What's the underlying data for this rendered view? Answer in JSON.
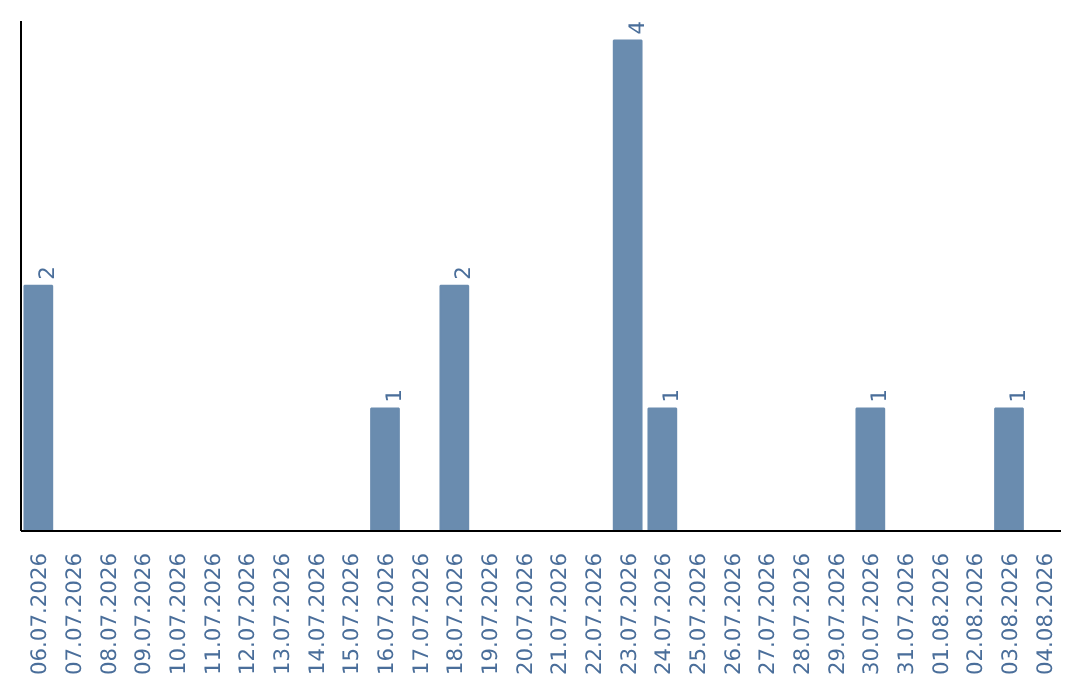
{
  "chart_data": {
    "type": "bar",
    "categories": [
      "06.07.2026",
      "07.07.2026",
      "08.07.2026",
      "09.07.2026",
      "10.07.2026",
      "11.07.2026",
      "12.07.2026",
      "13.07.2026",
      "14.07.2026",
      "15.07.2026",
      "16.07.2026",
      "17.07.2026",
      "18.07.2026",
      "19.07.2026",
      "20.07.2026",
      "21.07.2026",
      "22.07.2026",
      "23.07.2026",
      "24.07.2026",
      "25.07.2026",
      "26.07.2026",
      "27.07.2026",
      "28.07.2026",
      "29.07.2026",
      "30.07.2026",
      "31.07.2026",
      "01.08.2026",
      "02.08.2026",
      "03.08.2026",
      "04.08.2026"
    ],
    "values": [
      2,
      0,
      0,
      0,
      0,
      0,
      0,
      0,
      0,
      0,
      1,
      0,
      2,
      0,
      0,
      0,
      0,
      4,
      1,
      0,
      0,
      0,
      0,
      0,
      1,
      0,
      0,
      0,
      1,
      0
    ],
    "value_labels": [
      "2",
      null,
      null,
      null,
      null,
      null,
      null,
      null,
      null,
      null,
      "1",
      null,
      "2",
      null,
      null,
      null,
      null,
      "4",
      "1",
      null,
      null,
      null,
      null,
      null,
      "1",
      null,
      null,
      null,
      "1",
      null
    ],
    "color": "#6a8caf",
    "grid": false
  }
}
